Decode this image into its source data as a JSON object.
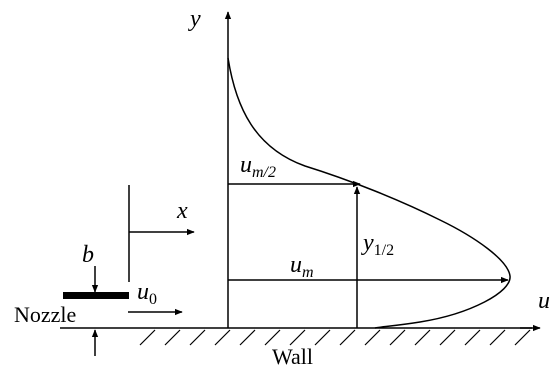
{
  "labels": {
    "y_axis": "y",
    "u_axis": "u",
    "x_axis": "x",
    "b": "b",
    "u0_base": "u",
    "u0_sub": "0",
    "um_base": "u",
    "um_sub": "m",
    "um2_base": "u",
    "um2_sub": "m/2",
    "y12_base": "y",
    "y12_sub": "1/2",
    "nozzle": "Nozzle",
    "wall": "Wall"
  }
}
